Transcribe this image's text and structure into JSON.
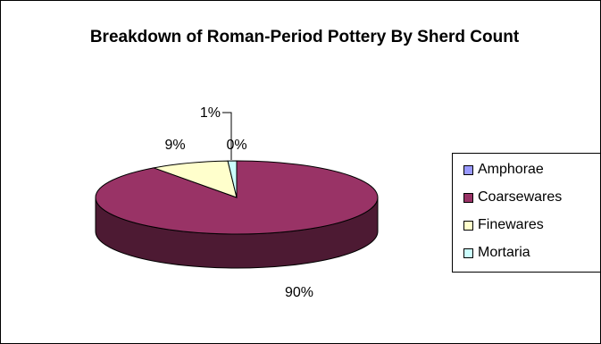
{
  "chart_data": {
    "type": "pie",
    "style": "3d",
    "title": "Breakdown of Roman-Period Pottery By Sherd Count",
    "categories": [
      "Amphorae",
      "Coarsewares",
      "Finewares",
      "Mortaria"
    ],
    "values": [
      0,
      90,
      9,
      1
    ],
    "labels": [
      "0%",
      "90%",
      "9%",
      "1%"
    ],
    "colors": [
      "#9999ff",
      "#993366",
      "#ffffcc",
      "#ccffff"
    ],
    "legend_position": "right"
  }
}
